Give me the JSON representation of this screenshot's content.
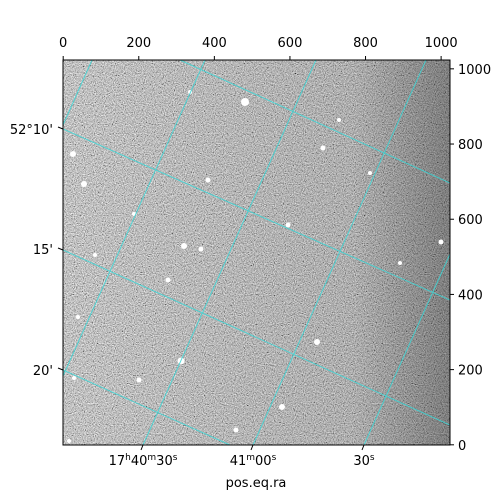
{
  "chart_data": {
    "type": "image",
    "xlabel": "pos.eq.ra",
    "xlim": [
      -0.5,
      1023.5
    ],
    "ylim": [
      -0.5,
      1023.5
    ],
    "xticks": [
      0,
      200,
      400,
      600,
      800,
      1000
    ],
    "yticks": [
      0,
      200,
      400,
      600,
      800,
      1000
    ],
    "ra_ticks": [
      "17h40m30s",
      "41m00s",
      "30s"
    ],
    "dec_ticks": [
      "52°10'",
      "15'",
      "20'"
    ]
  }
}
